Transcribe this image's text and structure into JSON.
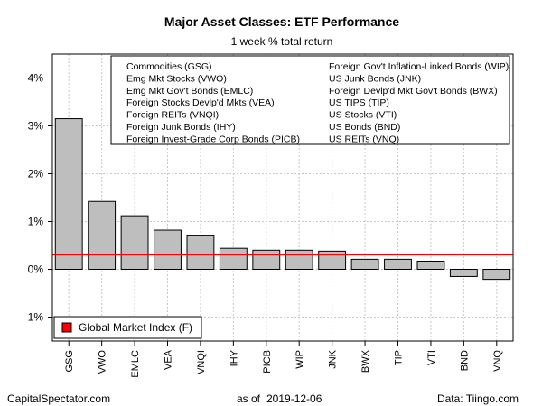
{
  "chart_data": {
    "type": "bar",
    "title": "Major Asset Classes: ETF Performance",
    "subtitle": "1 week % total return",
    "categories": [
      "GSG",
      "VWO",
      "EMLC",
      "VEA",
      "VNQI",
      "IHY",
      "PICB",
      "WIP",
      "JNK",
      "BWX",
      "TIP",
      "VTI",
      "BND",
      "VNQ"
    ],
    "values": [
      3.15,
      1.42,
      1.12,
      0.82,
      0.7,
      0.44,
      0.4,
      0.4,
      0.38,
      0.21,
      0.21,
      0.17,
      -0.15,
      -0.21
    ],
    "ylim": [
      -1.5,
      4.5
    ],
    "yticks": [
      -1,
      0,
      1,
      2,
      3,
      4
    ],
    "ytick_labels": [
      "-1%",
      "0%",
      "1%",
      "2%",
      "3%",
      "4%"
    ],
    "grid": true,
    "reference_line": {
      "label": "Global Market Index (F)",
      "value": 0.31,
      "color": "#ff0000"
    },
    "bar_color": "#bebebe",
    "legend_top": {
      "placement": "top-right",
      "left_column": [
        "Commodities (GSG)",
        "Emg Mkt Stocks (VWO)",
        "Emg Mkt Gov't Bonds (EMLC)",
        "Foreign Stocks Devlp'd Mkts (VEA)",
        "Foreign REITs (VNQI)",
        "Foreign Junk Bonds (IHY)",
        "Foreign Invest-Grade Corp Bonds (PICB)"
      ],
      "right_column": [
        "Foreign Gov't Inflation-Linked Bonds (WIP)",
        "US Junk Bonds (JNK)",
        "Foreign Devlp'd Mkt Gov't Bonds (BWX)",
        "US TIPS (TIP)",
        "US Stocks (VTI)",
        "US Bonds (BND)",
        "US REITs (VNQ)"
      ]
    },
    "legend_bottom": {
      "placement": "bottom-left"
    }
  },
  "footer": {
    "left": "CapitalSpectator.com",
    "as_of_label": "as of",
    "date": "2019-12-06",
    "right": "Data: Tiingo.com"
  }
}
